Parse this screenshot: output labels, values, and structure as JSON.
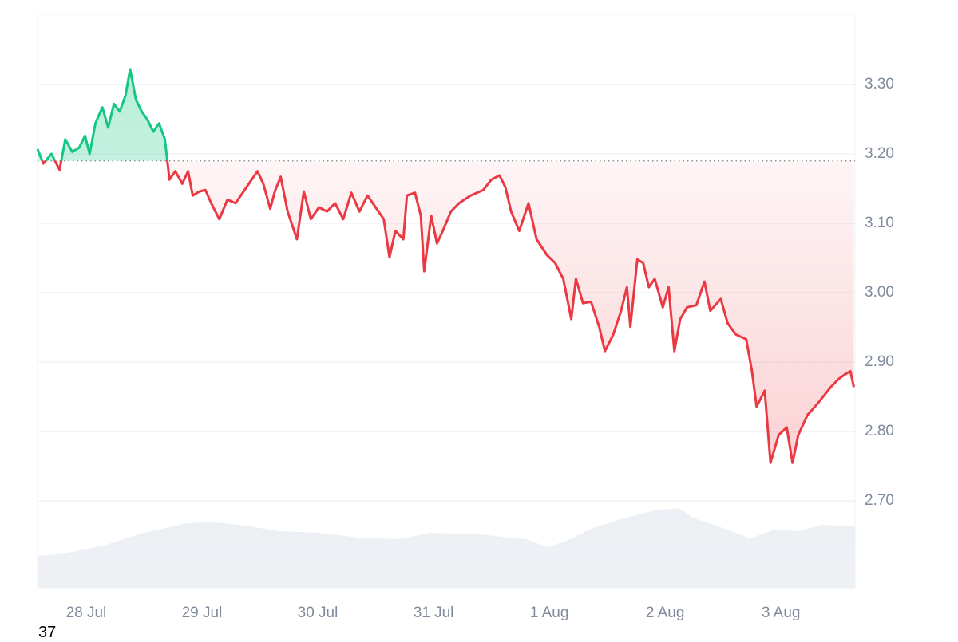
{
  "chart_data": {
    "type": "line",
    "xticks": [
      {
        "value": 0,
        "label": "28 Jul"
      },
      {
        "value": 1,
        "label": "29 Jul"
      },
      {
        "value": 2,
        "label": "30 Jul"
      },
      {
        "value": 3,
        "label": "31 Jul"
      },
      {
        "value": 4,
        "label": "1 Aug"
      },
      {
        "value": 5,
        "label": "2 Aug"
      },
      {
        "value": 6,
        "label": "3 Aug"
      }
    ],
    "xlim": [
      -0.42,
      6.64
    ],
    "ylim": [
      2.575,
      3.401
    ],
    "yticks": [
      {
        "value": 2.7,
        "label": "2.70"
      },
      {
        "value": 2.8,
        "label": "2.80"
      },
      {
        "value": 2.9,
        "label": "2.90"
      },
      {
        "value": 3.0,
        "label": "3.00"
      },
      {
        "value": 3.1,
        "label": "3.10"
      },
      {
        "value": 3.2,
        "label": "3.20"
      },
      {
        "value": 3.3,
        "label": "3.30"
      }
    ],
    "grid": true,
    "baseline": 3.19,
    "up_color": "#16c784",
    "down_color": "#ea3943",
    "x": [
      -0.42,
      -0.37,
      -0.3,
      -0.23,
      -0.18,
      -0.12,
      -0.06,
      -0.01,
      0.03,
      0.08,
      0.14,
      0.19,
      0.24,
      0.29,
      0.34,
      0.38,
      0.43,
      0.48,
      0.53,
      0.58,
      0.63,
      0.68,
      0.72,
      0.77,
      0.83,
      0.88,
      0.92,
      0.98,
      1.03,
      1.08,
      1.15,
      1.22,
      1.29,
      1.36,
      1.43,
      1.48,
      1.53,
      1.59,
      1.63,
      1.68,
      1.74,
      1.82,
      1.88,
      1.94,
      2.01,
      2.08,
      2.15,
      2.22,
      2.29,
      2.36,
      2.43,
      2.5,
      2.57,
      2.62,
      2.67,
      2.74,
      2.77,
      2.84,
      2.89,
      2.92,
      2.98,
      3.03,
      3.08,
      3.15,
      3.22,
      3.32,
      3.43,
      3.5,
      3.57,
      3.62,
      3.67,
      3.74,
      3.82,
      3.89,
      3.98,
      4.05,
      4.12,
      4.19,
      4.23,
      4.29,
      4.36,
      4.43,
      4.48,
      4.55,
      4.62,
      4.67,
      4.7,
      4.76,
      4.81,
      4.86,
      4.91,
      4.98,
      5.03,
      5.08,
      5.13,
      5.19,
      5.27,
      5.34,
      5.39,
      5.48,
      5.54,
      5.61,
      5.7,
      5.75,
      5.79,
      5.86,
      5.91,
      5.98,
      6.05,
      6.1,
      6.15,
      6.23,
      6.32,
      6.43,
      6.5,
      6.55,
      6.6,
      6.63
    ],
    "values": [
      3.207,
      3.186,
      3.2,
      3.177,
      3.221,
      3.203,
      3.209,
      3.226,
      3.2,
      3.244,
      3.267,
      3.238,
      3.272,
      3.261,
      3.284,
      3.322,
      3.278,
      3.261,
      3.249,
      3.232,
      3.244,
      3.221,
      3.163,
      3.175,
      3.157,
      3.175,
      3.14,
      3.146,
      3.148,
      3.129,
      3.106,
      3.134,
      3.129,
      3.146,
      3.163,
      3.175,
      3.157,
      3.121,
      3.146,
      3.167,
      3.117,
      3.077,
      3.146,
      3.106,
      3.123,
      3.117,
      3.129,
      3.106,
      3.144,
      3.117,
      3.14,
      3.123,
      3.106,
      3.051,
      3.089,
      3.077,
      3.14,
      3.144,
      3.111,
      3.031,
      3.111,
      3.071,
      3.089,
      3.117,
      3.129,
      3.14,
      3.148,
      3.163,
      3.169,
      3.152,
      3.117,
      3.089,
      3.129,
      3.077,
      3.054,
      3.043,
      3.02,
      2.962,
      3.02,
      2.985,
      2.987,
      2.951,
      2.916,
      2.939,
      2.974,
      3.008,
      2.951,
      3.048,
      3.043,
      3.008,
      3.02,
      2.979,
      3.008,
      2.916,
      2.962,
      2.979,
      2.982,
      3.016,
      2.974,
      2.991,
      2.956,
      2.94,
      2.933,
      2.887,
      2.836,
      2.859,
      2.755,
      2.795,
      2.806,
      2.755,
      2.795,
      2.824,
      2.841,
      2.864,
      2.876,
      2.882,
      2.887,
      2.864
    ]
  },
  "footer": "37"
}
